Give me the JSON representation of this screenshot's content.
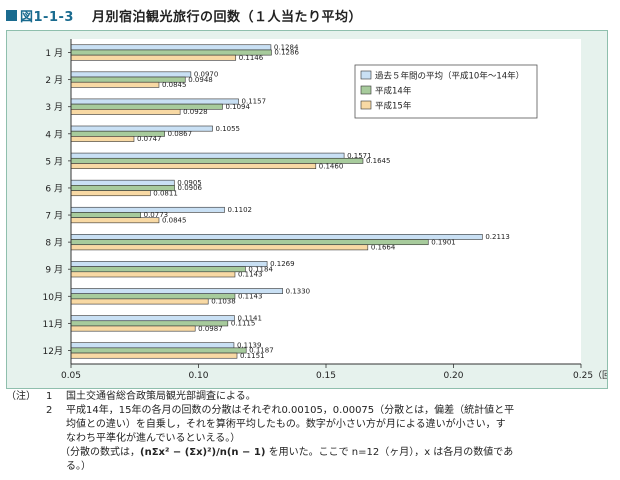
{
  "header": {
    "figure_number": "図1-1-3",
    "title": "月別宿泊観光旅行の回数（１人当たり平均）"
  },
  "chart_data": {
    "type": "bar",
    "orientation": "horizontal",
    "categories": [
      "1 月",
      "2 月",
      "3 月",
      "4 月",
      "5 月",
      "6 月",
      "7 月",
      "8 月",
      "9 月",
      "10月",
      "11月",
      "12月"
    ],
    "series": [
      {
        "name": "過去５年間の平均（平成10年～14年）",
        "color": "#c9e0f4",
        "values": [
          0.1284,
          0.097,
          0.1157,
          0.1055,
          0.1571,
          0.0905,
          0.1102,
          0.2113,
          0.1269,
          0.133,
          0.1141,
          0.1139
        ],
        "labels": [
          "0.1284",
          "0.0970",
          "0.1157",
          "0.1055",
          "0.1571",
          "0.0905",
          "0.1102",
          "0.2113",
          "0.1269",
          "0.1330",
          "0.1141",
          "0.1139"
        ]
      },
      {
        "name": "平成14年",
        "color": "#a7cb9c",
        "values": [
          0.1286,
          0.0948,
          0.1094,
          0.0867,
          0.1645,
          0.0906,
          0.0773,
          0.1901,
          0.1184,
          0.1143,
          0.1115,
          0.1187
        ],
        "labels": [
          "0.1286",
          "0.0948",
          "0.1094",
          "0.0867",
          "0.1645",
          "0.0906",
          "0.0773",
          "0.1901",
          "0.1184",
          "0.1143",
          "0.1115",
          "0.1187"
        ]
      },
      {
        "name": "平成15年",
        "color": "#f8d9a4",
        "values": [
          0.1146,
          0.0845,
          0.0928,
          0.0747,
          0.146,
          0.0811,
          0.0845,
          0.1664,
          0.1143,
          0.1038,
          0.0987,
          0.1151
        ],
        "labels": [
          "0.1146",
          "0.0845",
          "0.0928",
          "0.0747",
          "0.1460",
          "0.0811",
          "0.0845",
          "0.1664",
          "0.1143",
          "0.1038",
          "0.0987",
          "0.1151"
        ]
      }
    ],
    "xlim": [
      0.05,
      0.25
    ],
    "xticks": [
      0.05,
      0.1,
      0.15,
      0.2,
      0.25
    ],
    "xtick_labels": [
      "0.05",
      "0.10",
      "0.15",
      "0.20",
      "0.25（回）"
    ],
    "grid": false,
    "legend_position": "top-right"
  },
  "notes": {
    "prefix": "（注）",
    "n1_num": "1",
    "n1_text": "国土交通省総合政策局観光部調査による。",
    "n2_num": "2",
    "n2_line1": "平成14年，15年の各月の回数の分散はそれぞれ0.00105，0.00075（分散とは，偏差（統計値と平",
    "n2_line2": "均値との違い）を自乗し，それを算術平均したもの。数字が小さい方が月による違いが小さい，す",
    "n2_line3": "なわち平準化が進んでいるといえる。）",
    "n2_formula_prefix": "（分散の数式は，",
    "n2_formula": "(nΣx² − (Σx)²)/n(n − 1)",
    "n2_formula_suffix": " を用いた。ここで n=12（ヶ月），x は各月の数値であ",
    "n2_line5": "る。）"
  }
}
